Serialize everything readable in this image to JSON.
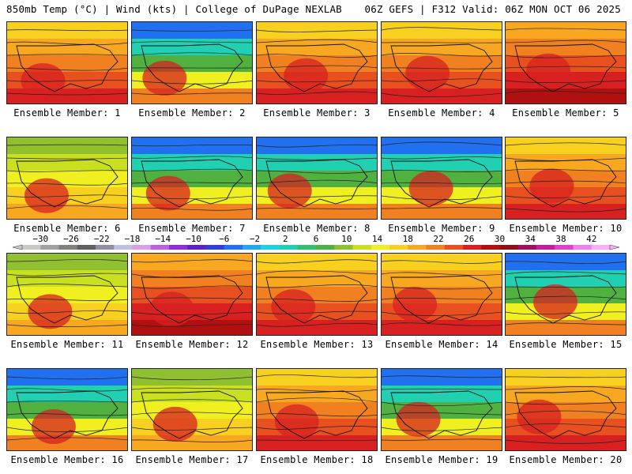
{
  "header": {
    "left": "850mb Temp (°C) | Wind (kts) | College of DuPage NEXLAB",
    "right": "06Z GEFS | F312 Valid: 06Z MON OCT 06 2025"
  },
  "caption_prefix": "Ensemble Member: ",
  "members": [
    {
      "n": "1",
      "palette": "warm"
    },
    {
      "n": "2",
      "palette": "coldnorth"
    },
    {
      "n": "3",
      "palette": "warm"
    },
    {
      "n": "4",
      "palette": "warm"
    },
    {
      "n": "5",
      "palette": "hot"
    },
    {
      "n": "6",
      "palette": "mild"
    },
    {
      "n": "7",
      "palette": "coldnorth"
    },
    {
      "n": "8",
      "palette": "coldnorth"
    },
    {
      "n": "9",
      "palette": "coldnorth"
    },
    {
      "n": "10",
      "palette": "warm"
    },
    {
      "n": "11",
      "palette": "mild"
    },
    {
      "n": "12",
      "palette": "hot"
    },
    {
      "n": "13",
      "palette": "warm"
    },
    {
      "n": "14",
      "palette": "warm"
    },
    {
      "n": "15",
      "palette": "coldnorth"
    },
    {
      "n": "16",
      "palette": "coldnorth"
    },
    {
      "n": "17",
      "palette": "mild"
    },
    {
      "n": "18",
      "palette": "warm"
    },
    {
      "n": "19",
      "palette": "coldnorth"
    },
    {
      "n": "20",
      "palette": "warm"
    }
  ],
  "colorbar": {
    "ticks": [
      "−30",
      "−26",
      "−22",
      "−18",
      "−14",
      "−10",
      "−6",
      "−2",
      "2",
      "6",
      "10",
      "14",
      "18",
      "22",
      "26",
      "30",
      "34",
      "38",
      "42"
    ],
    "colors": [
      "#c8c8c8",
      "#a0a0a0",
      "#808080",
      "#606060",
      "#9090a0",
      "#c0c0e0",
      "#d8a0e8",
      "#c060e0",
      "#9030d0",
      "#6020c0",
      "#3040d0",
      "#2070f0",
      "#20a8f0",
      "#20d0e0",
      "#20d0b0",
      "#30c070",
      "#50b040",
      "#90c030",
      "#c8e020",
      "#f0f020",
      "#f8d020",
      "#f8a820",
      "#f08020",
      "#e85020",
      "#d82020",
      "#b01010",
      "#901010",
      "#a01060",
      "#c020a0",
      "#e040d0",
      "#f080f0",
      "#f8b0f8"
    ]
  }
}
